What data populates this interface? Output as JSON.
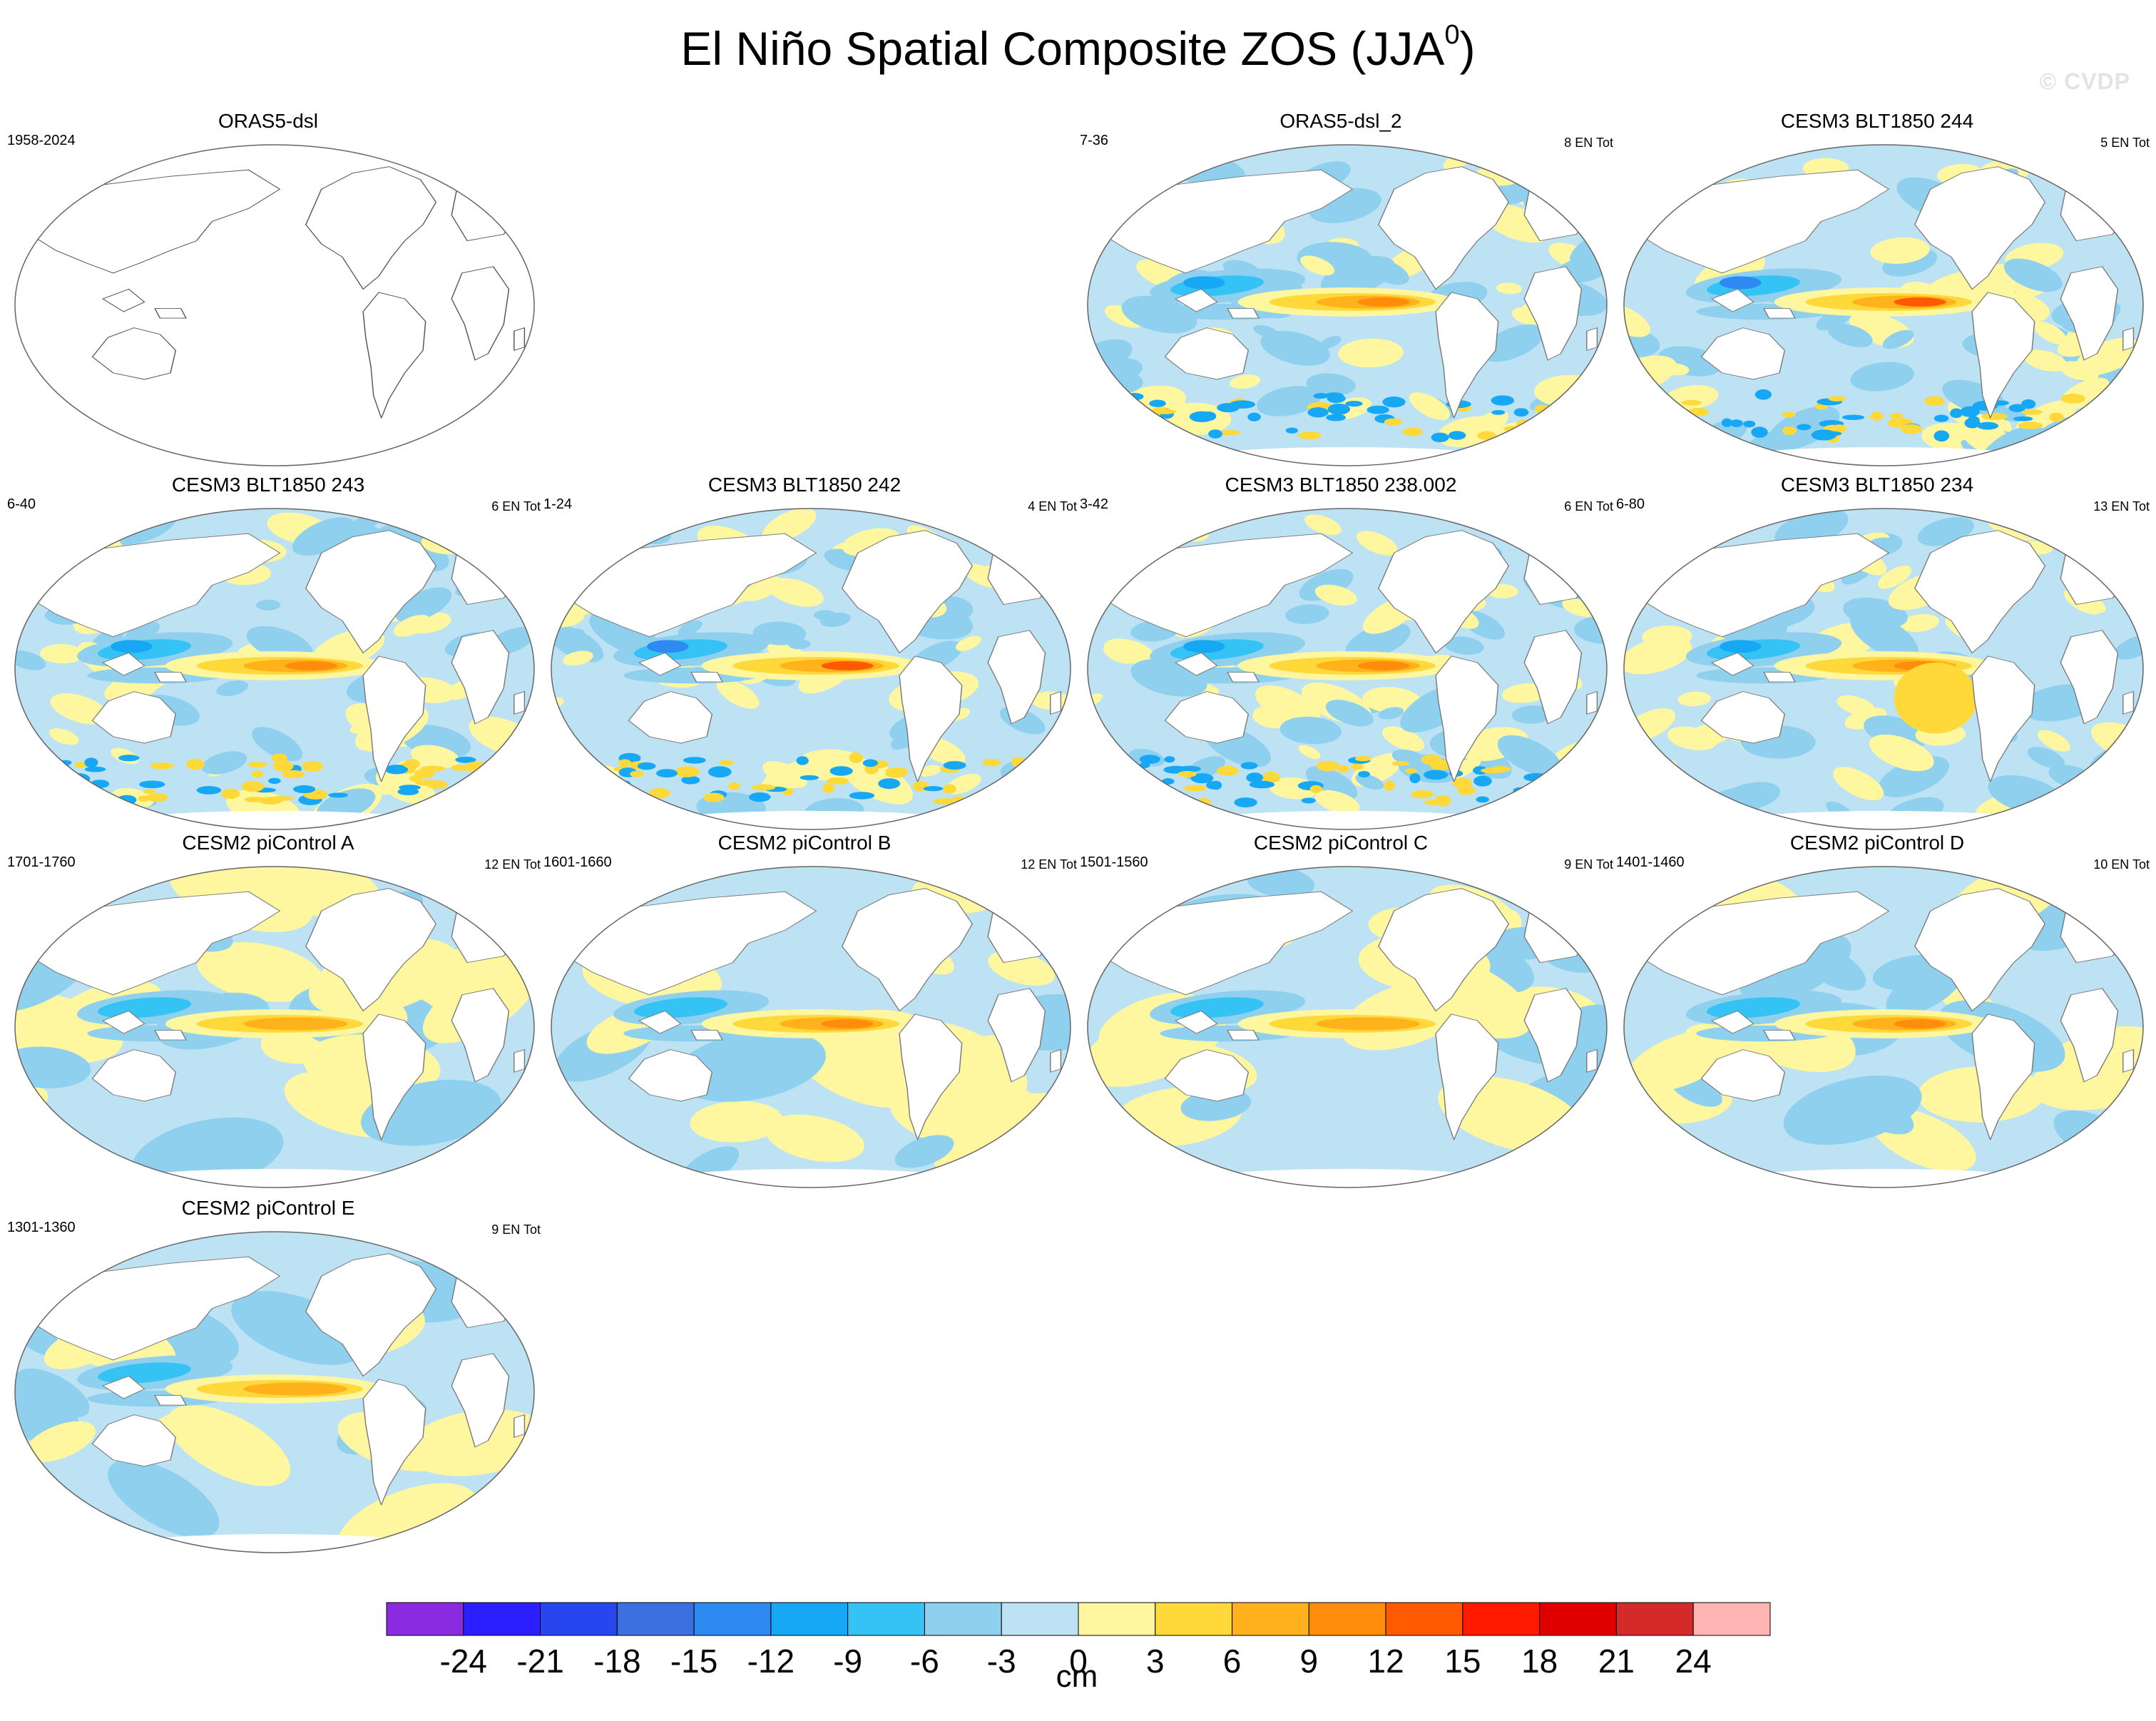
{
  "title": "El Niño Spatial Composite ZOS (JJA",
  "title_sup": "0",
  "title_close": ")",
  "watermark": "© CVDP",
  "colorbar": {
    "units": "cm",
    "tick_labels": [
      "-24",
      "-21",
      "-18",
      "-15",
      "-12",
      "-9",
      "-6",
      "-3",
      "0",
      "3",
      "6",
      "9",
      "12",
      "15",
      "18",
      "21",
      "24"
    ],
    "colors": [
      "#8a2be2",
      "#2b1fff",
      "#2846f0",
      "#3c70e0",
      "#2c8af2",
      "#16a8f5",
      "#35c3f5",
      "#8fd0ef",
      "#bde2f3",
      "#fff7a0",
      "#ffd93a",
      "#ffb21c",
      "#ff8c0a",
      "#ff5a00",
      "#ff1a00",
      "#e00000",
      "#d42a2a",
      "#ffb4b4"
    ]
  },
  "chart_data": [
    {
      "type": "heatmap",
      "title": "ORAS5-dsl",
      "years": "1958-2024",
      "en_count": "",
      "field": "empty"
    },
    {
      "type": "heatmap",
      "title": "ORAS5-dsl_2",
      "years": "7-36",
      "en_count": "8 EN Tot",
      "field": "obs_noisy"
    },
    {
      "type": "heatmap",
      "title": "CESM3 BLT1850 244",
      "years": "",
      "en_count": "5 EN Tot",
      "field": "strong"
    },
    {
      "type": "heatmap",
      "title": "CESM3 BLT1850 243",
      "years": "6-40",
      "en_count": "6 EN Tot",
      "field": "noisy"
    },
    {
      "type": "heatmap",
      "title": "CESM3 BLT1850 242",
      "years": "1-24",
      "en_count": "4 EN Tot",
      "field": "strong"
    },
    {
      "type": "heatmap",
      "title": "CESM3 BLT1850 238.002",
      "years": "3-42",
      "en_count": "6 EN Tot",
      "field": "noisy"
    },
    {
      "type": "heatmap",
      "title": "CESM3 BLT1850 234",
      "years": "6-80",
      "en_count": "13 EN Tot",
      "field": "moderate"
    },
    {
      "type": "heatmap",
      "title": "CESM2 piControl A",
      "years": "1701-1760",
      "en_count": "12 EN Tot",
      "field": "smooth"
    },
    {
      "type": "heatmap",
      "title": "CESM2 piControl B",
      "years": "1601-1660",
      "en_count": "12 EN Tot",
      "field": "smooth"
    },
    {
      "type": "heatmap",
      "title": "CESM2 piControl C",
      "years": "1501-1560",
      "en_count": "9 EN Tot",
      "field": "smooth"
    },
    {
      "type": "heatmap",
      "title": "CESM2 piControl D",
      "years": "1401-1460",
      "en_count": "10 EN Tot",
      "field": "smooth"
    },
    {
      "type": "heatmap",
      "title": "CESM2 piControl E",
      "years": "1301-1360",
      "en_count": "9 EN Tot",
      "field": "smooth"
    }
  ]
}
